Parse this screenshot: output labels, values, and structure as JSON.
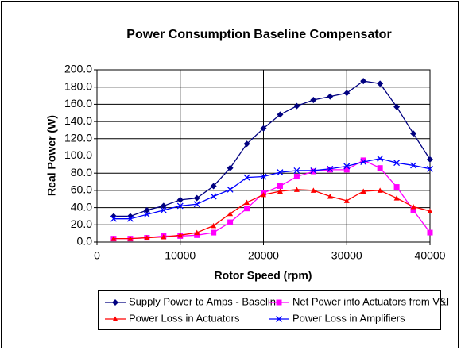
{
  "chart_data": {
    "type": "line",
    "title": "Power  Consumption Baseline Compensator",
    "xlabel": "Rotor Speed (rpm)",
    "ylabel": "Real Power (W)",
    "x": [
      2000,
      4000,
      6000,
      8000,
      10000,
      12000,
      14000,
      16000,
      18000,
      20000,
      22000,
      24000,
      26000,
      28000,
      30000,
      32000,
      34000,
      36000,
      38000,
      40000
    ],
    "series": [
      {
        "name": "Supply Power to Amps - Baseline",
        "color": "#000080",
        "marker": "diamond",
        "values": [
          30,
          30,
          37,
          42,
          49,
          51,
          65,
          86,
          114,
          132,
          148,
          158,
          165,
          169,
          173,
          187,
          184,
          157,
          126,
          96
        ]
      },
      {
        "name": "Net Power into Actuators from V&I",
        "color": "#ff00ff",
        "marker": "square",
        "values": [
          4,
          4,
          5,
          7,
          7,
          8,
          11,
          23,
          39,
          57,
          65,
          76,
          82,
          84,
          84,
          95,
          86,
          64,
          37,
          11
        ]
      },
      {
        "name": "Power Loss in Actuators",
        "color": "#ff0000",
        "marker": "triangle",
        "values": [
          4,
          4,
          5,
          6,
          8,
          11,
          19,
          33,
          46,
          55,
          59,
          61,
          60,
          53,
          48,
          59,
          60,
          51,
          41,
          36
        ]
      },
      {
        "name": "Power Loss in Amplifiers",
        "color": "#0000ff",
        "marker": "x",
        "values": [
          27,
          27,
          32,
          37,
          42,
          44,
          53,
          61,
          75,
          76,
          81,
          83,
          83,
          85,
          88,
          93,
          97,
          92,
          89,
          85
        ]
      }
    ],
    "xlim": [
      0,
      40000
    ],
    "xticks": [
      0,
      10000,
      20000,
      30000,
      40000
    ],
    "ylim": [
      0,
      200
    ],
    "yticks": [
      {
        "value": 0,
        "label": "0.0"
      },
      {
        "value": 20,
        "label": "20.0"
      },
      {
        "value": 40,
        "label": "40.0"
      },
      {
        "value": 60,
        "label": "60.0"
      },
      {
        "value": 80,
        "label": "80.0"
      },
      {
        "value": 100,
        "label": "100.0"
      },
      {
        "value": 120,
        "label": "120.0"
      },
      {
        "value": 140,
        "label": "140.0"
      },
      {
        "value": 160,
        "label": "160.0"
      },
      {
        "value": 180,
        "label": "180.0"
      },
      {
        "value": 200,
        "label": "200.0"
      }
    ],
    "grid": true,
    "legend": "bottom"
  }
}
